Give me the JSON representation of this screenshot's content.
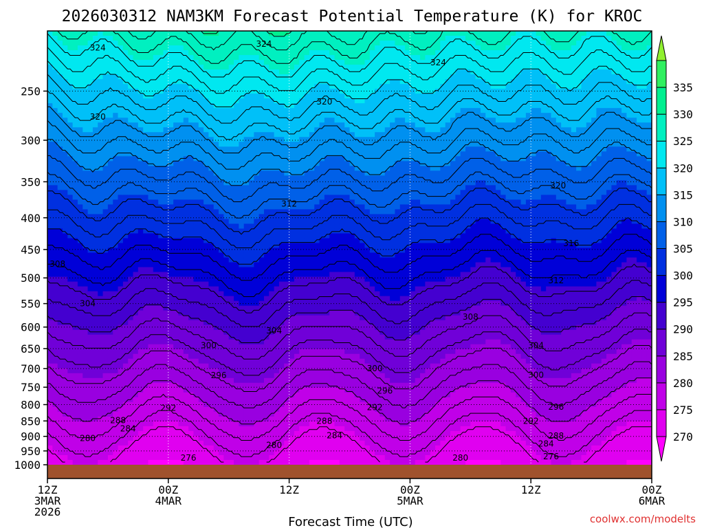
{
  "chart_data": {
    "type": "heatmap",
    "title": "2026030312 NAM3KM Forecast Potential Temperature (K) for KROC",
    "xlabel": "Forecast Time (UTC)",
    "ylabel": "",
    "x_ticks": [
      {
        "hours": 0,
        "line1": "12Z",
        "line2": "3MAR",
        "line3": "2026"
      },
      {
        "hours": 12,
        "line1": "00Z",
        "line2": "4MAR",
        "line3": ""
      },
      {
        "hours": 24,
        "line1": "12Z",
        "line2": "",
        "line3": ""
      },
      {
        "hours": 36,
        "line1": "00Z",
        "line2": "5MAR",
        "line3": ""
      },
      {
        "hours": 48,
        "line1": "12Z",
        "line2": "",
        "line3": ""
      },
      {
        "hours": 60,
        "line1": "00Z",
        "line2": "6MAR",
        "line3": ""
      }
    ],
    "xlim": [
      0,
      60
    ],
    "y_ticks": [
      250,
      300,
      350,
      400,
      450,
      500,
      550,
      600,
      650,
      700,
      750,
      800,
      850,
      900,
      950,
      1000
    ],
    "ylim": [
      200,
      1000
    ],
    "y_scale": "log",
    "grid": true,
    "colorbar": {
      "levels": [
        270,
        275,
        280,
        285,
        290,
        295,
        300,
        305,
        310,
        315,
        320,
        325,
        330,
        335
      ],
      "colors": [
        "#ff00ff",
        "#e000f0",
        "#c000e8",
        "#9900e0",
        "#7000d8",
        "#4400d0",
        "#0000d8",
        "#0030e0",
        "#0060e8",
        "#0090f0",
        "#00c0f8",
        "#00e8f0",
        "#00f0c0",
        "#00f090",
        "#30f060",
        "#90f030"
      ]
    },
    "contour_labels": [
      {
        "value": 324,
        "hours": 5,
        "p": 213
      },
      {
        "value": 324,
        "hours": 21.5,
        "p": 210
      },
      {
        "value": 324,
        "hours": 38.8,
        "p": 225
      },
      {
        "value": 320,
        "hours": 5,
        "p": 275
      },
      {
        "value": 320,
        "hours": 27.5,
        "p": 260
      },
      {
        "value": 320,
        "hours": 50.7,
        "p": 355
      },
      {
        "value": 316,
        "hours": 52,
        "p": 440
      },
      {
        "value": 312,
        "hours": 24,
        "p": 380
      },
      {
        "value": 312,
        "hours": 50.5,
        "p": 505
      },
      {
        "value": 308,
        "hours": 1,
        "p": 475
      },
      {
        "value": 308,
        "hours": 42,
        "p": 578
      },
      {
        "value": 304,
        "hours": 4,
        "p": 550
      },
      {
        "value": 304,
        "hours": 22.5,
        "p": 608
      },
      {
        "value": 304,
        "hours": 48.5,
        "p": 642
      },
      {
        "value": 300,
        "hours": 16,
        "p": 642
      },
      {
        "value": 300,
        "hours": 32.5,
        "p": 700
      },
      {
        "value": 300,
        "hours": 48.5,
        "p": 717
      },
      {
        "value": 296,
        "hours": 17,
        "p": 718
      },
      {
        "value": 296,
        "hours": 33.5,
        "p": 760
      },
      {
        "value": 296,
        "hours": 50.5,
        "p": 807
      },
      {
        "value": 292,
        "hours": 12,
        "p": 810
      },
      {
        "value": 292,
        "hours": 32.5,
        "p": 808
      },
      {
        "value": 292,
        "hours": 48,
        "p": 850
      },
      {
        "value": 288,
        "hours": 7,
        "p": 848
      },
      {
        "value": 288,
        "hours": 27.5,
        "p": 850
      },
      {
        "value": 288,
        "hours": 50.5,
        "p": 898
      },
      {
        "value": 284,
        "hours": 8,
        "p": 875
      },
      {
        "value": 284,
        "hours": 28.5,
        "p": 897
      },
      {
        "value": 284,
        "hours": 49.5,
        "p": 925
      },
      {
        "value": 280,
        "hours": 4,
        "p": 906
      },
      {
        "value": 280,
        "hours": 22.5,
        "p": 930
      },
      {
        "value": 280,
        "hours": 41,
        "p": 975
      },
      {
        "value": 276,
        "hours": 14,
        "p": 975
      },
      {
        "value": 276,
        "hours": 50,
        "p": 970
      }
    ]
  },
  "credit": "coolwx.com/modelts"
}
